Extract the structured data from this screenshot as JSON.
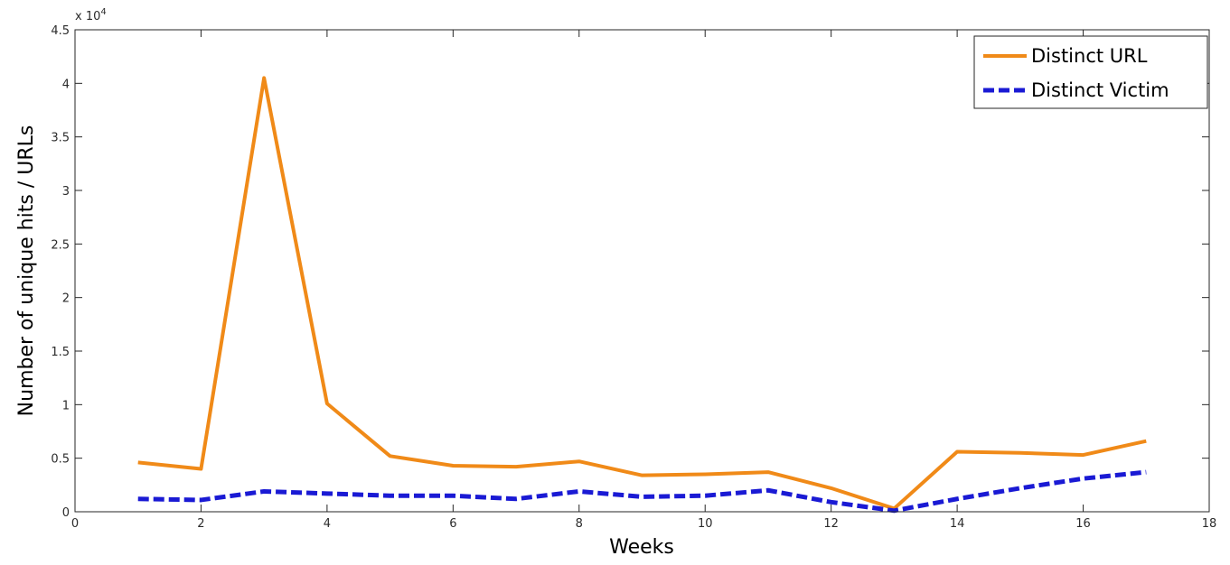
{
  "chart_data": {
    "type": "line",
    "title": "",
    "xlabel": "Weeks",
    "ylabel": "Number of unique hits / URLs",
    "x_ticks": [
      "0",
      "2",
      "4",
      "6",
      "8",
      "10",
      "12",
      "14",
      "16",
      "18"
    ],
    "y_ticks": [
      "0",
      "0.5",
      "1",
      "1.5",
      "2",
      "2.5",
      "3",
      "3.5",
      "4",
      "4.5"
    ],
    "y_exponent_label": "x 10",
    "y_exponent_power": "4",
    "xlim": [
      0,
      18
    ],
    "ylim": [
      0,
      45000
    ],
    "grid": false,
    "legend_position": "top-right",
    "x": [
      1,
      2,
      3,
      4,
      5,
      6,
      7,
      8,
      9,
      10,
      11,
      12,
      13,
      14,
      15,
      16,
      17
    ],
    "series": [
      {
        "name": "Distinct URL",
        "color": "#f08a18",
        "dash": "solid",
        "values": [
          4600,
          4000,
          40500,
          10100,
          5200,
          4300,
          4200,
          4700,
          3400,
          3500,
          3700,
          2200,
          300,
          5600,
          5500,
          5300,
          6600
        ]
      },
      {
        "name": "Distinct Victim",
        "color": "#1a1ad4",
        "dash": "dashed",
        "values": [
          1200,
          1100,
          1900,
          1700,
          1500,
          1500,
          1200,
          1900,
          1400,
          1500,
          2000,
          900,
          100,
          1200,
          2200,
          3100,
          3700
        ]
      }
    ]
  }
}
